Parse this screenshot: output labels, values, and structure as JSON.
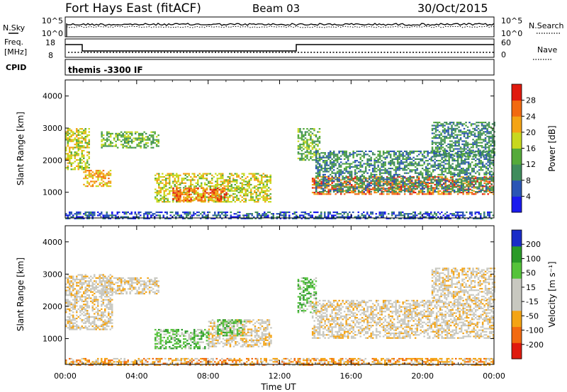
{
  "header": {
    "title": "Fort Hays East (fitACF)",
    "beam": "Beam 03",
    "date": "30/Oct/2015"
  },
  "top_panels": {
    "nsky_label": "N.Sky",
    "nsky_top_tick": "10^5",
    "nsky_bottom_tick": "10^0",
    "nsearch_label": "N.Search",
    "nsearch_top_tick": "10^5",
    "nsearch_bottom_tick": "10^0",
    "freq_label_1": "Freq.",
    "freq_label_2": "[MHz]",
    "freq_top_tick": "18",
    "freq_bottom_tick": "8",
    "nave_label": "Nave",
    "nave_top_tick": "60",
    "nave_bottom_tick": "0",
    "cpid_label": "CPID",
    "cpid_value": "themis -3300 IF"
  },
  "colors": {
    "power": [
      "#1a1aee",
      "#2a55b5",
      "#3f8c5c",
      "#55aa3a",
      "#c8d81e",
      "#f4a414",
      "#f26a10",
      "#e01a0e"
    ],
    "velocity": [
      "#e01a0e",
      "#f26a10",
      "#f4a414",
      "#c8c8c0",
      "#c8c8c0",
      "#55c33a",
      "#2a9a28",
      "#1a2cc8"
    ]
  },
  "chart_data": [
    {
      "type": "heatmap",
      "name": "power",
      "ylabel": "Slant Range [km]",
      "yticks": [
        "1000",
        "2000",
        "3000",
        "4000"
      ],
      "ylim": [
        200,
        4500
      ],
      "xlim_hours": [
        0,
        24
      ],
      "colorbar_label": "Power [dB]",
      "colorbar_ticks": [
        "4",
        "8",
        "12",
        "16",
        "20",
        "24",
        "28"
      ],
      "colorbar_range": [
        0,
        32
      ],
      "regions": [
        {
          "x": [
            0.0,
            1.3
          ],
          "y": [
            1700,
            3000
          ],
          "level": 4
        },
        {
          "x": [
            1.0,
            2.5
          ],
          "y": [
            1200,
            1700
          ],
          "level": 5
        },
        {
          "x": [
            2.0,
            5.2
          ],
          "y": [
            2400,
            2900
          ],
          "level": 3
        },
        {
          "x": [
            5.0,
            11.5
          ],
          "y": [
            700,
            1600
          ],
          "level": 4
        },
        {
          "x": [
            6.0,
            9.0
          ],
          "y": [
            750,
            1150
          ],
          "level": 6
        },
        {
          "x": [
            13.0,
            14.2
          ],
          "y": [
            2000,
            3000
          ],
          "level": 3
        },
        {
          "x": [
            13.8,
            24.0
          ],
          "y": [
            950,
            1500
          ],
          "level": 6
        },
        {
          "x": [
            14.0,
            24.0
          ],
          "y": [
            1000,
            2300
          ],
          "level": 2
        },
        {
          "x": [
            20.5,
            24.0
          ],
          "y": [
            2100,
            3200
          ],
          "level": 2
        },
        {
          "x": [
            0.0,
            24.0
          ],
          "y": [
            200,
            400
          ],
          "level": 1
        }
      ]
    },
    {
      "type": "heatmap",
      "name": "velocity",
      "ylabel": "Slant Range [km]",
      "yticks": [
        "1000",
        "2000",
        "3000",
        "4000"
      ],
      "ylim": [
        200,
        4500
      ],
      "xlim_hours": [
        0,
        24
      ],
      "colorbar_label": "Velocity [m s⁻¹]",
      "colorbar_ticks": [
        "-200",
        "-100",
        "-50",
        "-15",
        "15",
        "50",
        "100",
        "200"
      ],
      "regions": [
        {
          "x": [
            0.0,
            2.6
          ],
          "y": [
            1300,
            3000
          ],
          "level": 3
        },
        {
          "x": [
            2.0,
            5.2
          ],
          "y": [
            2400,
            2900
          ],
          "level": 3
        },
        {
          "x": [
            5.0,
            8.0
          ],
          "y": [
            700,
            1300
          ],
          "level": 5
        },
        {
          "x": [
            8.0,
            11.5
          ],
          "y": [
            750,
            1600
          ],
          "level": 3
        },
        {
          "x": [
            8.5,
            10.0
          ],
          "y": [
            1100,
            1600
          ],
          "level": 5
        },
        {
          "x": [
            13.0,
            14.0
          ],
          "y": [
            1800,
            2900
          ],
          "level": 5
        },
        {
          "x": [
            13.8,
            24.0
          ],
          "y": [
            1000,
            2200
          ],
          "level": 3
        },
        {
          "x": [
            20.5,
            24.0
          ],
          "y": [
            2200,
            3200
          ],
          "level": 3
        },
        {
          "x": [
            0.0,
            24.0
          ],
          "y": [
            200,
            400
          ],
          "level": 2
        }
      ]
    }
  ],
  "x_axis": {
    "ticks": [
      "00:00",
      "04:00",
      "08:00",
      "12:00",
      "16:00",
      "20:00",
      "00:00"
    ],
    "label": "Time UT"
  }
}
